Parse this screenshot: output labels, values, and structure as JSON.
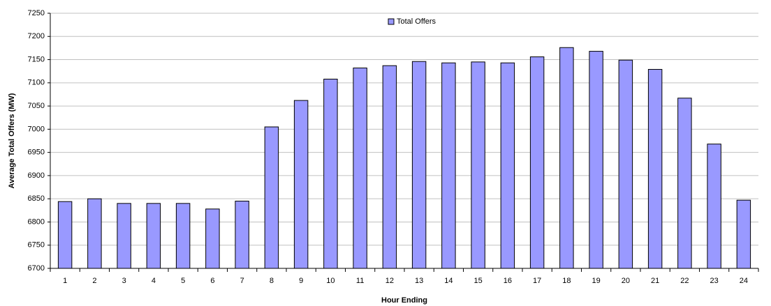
{
  "chart_data": {
    "type": "bar",
    "x_label": "Hour Ending",
    "y_label": "Average Total Offers (MW)",
    "categories": [
      "1",
      "2",
      "3",
      "4",
      "5",
      "6",
      "7",
      "8",
      "9",
      "10",
      "11",
      "12",
      "13",
      "14",
      "15",
      "16",
      "17",
      "18",
      "19",
      "20",
      "21",
      "22",
      "23",
      "24"
    ],
    "series": [
      {
        "name": "Total Offers",
        "color": "#9999ff",
        "values": [
          6844,
          6850,
          6840,
          6840,
          6840,
          6828,
          6845,
          7005,
          7062,
          7108,
          7132,
          7137,
          7146,
          7143,
          7145,
          7143,
          7156,
          7176,
          7168,
          7149,
          7129,
          7067,
          6968,
          6847
        ]
      }
    ],
    "ylim": [
      6700,
      7250
    ],
    "yticks": [
      6700,
      6750,
      6800,
      6850,
      6900,
      6950,
      7000,
      7050,
      7100,
      7150,
      7200,
      7250
    ],
    "grid": true,
    "legend": "top"
  }
}
